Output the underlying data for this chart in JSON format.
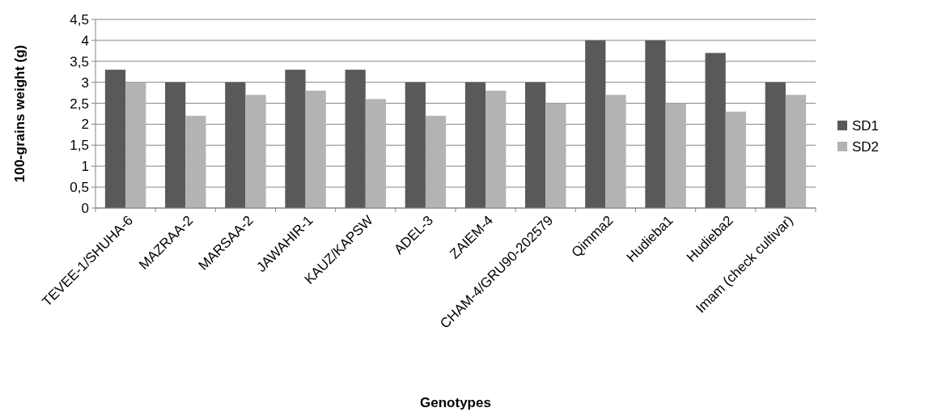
{
  "chart_data": {
    "type": "bar",
    "xlabel": "Genotypes",
    "ylabel": "100-grains weight (g)",
    "categories": [
      "TEVEE-1/SHUHA-6",
      "MAZRAA-2",
      "MARSAA-2",
      "JAWAHIR-1",
      "KAUZ/KAPSW",
      "ADEL-3",
      "ZAIEM-4",
      "CHAM-4/GRU90-202579",
      "Qimma2",
      "Hudieba1",
      "Hudieba2",
      "Imam (check cultivar)"
    ],
    "series": [
      {
        "name": "SD1",
        "color": "#595959",
        "values": [
          3.3,
          3,
          3,
          3.3,
          3.3,
          3,
          3,
          3,
          4,
          4,
          3.7,
          3
        ]
      },
      {
        "name": "SD2",
        "color": "#b3b3b3",
        "values": [
          3,
          2.2,
          2.7,
          2.8,
          2.6,
          2.2,
          2.8,
          2.5,
          2.7,
          2.5,
          2.3,
          2.7
        ]
      }
    ],
    "ylim": [
      0,
      4.5
    ],
    "yticks": [
      0,
      {
        "value": 0.5,
        "label": "0,5"
      },
      1,
      {
        "value": 1.5,
        "label": "1,5"
      },
      2,
      {
        "value": 2.5,
        "label": "2,5"
      },
      3,
      {
        "value": 3.5,
        "label": "3,5"
      },
      4,
      {
        "value": 4.5,
        "label": "4,5"
      }
    ],
    "grid": "y",
    "legend": "right"
  }
}
